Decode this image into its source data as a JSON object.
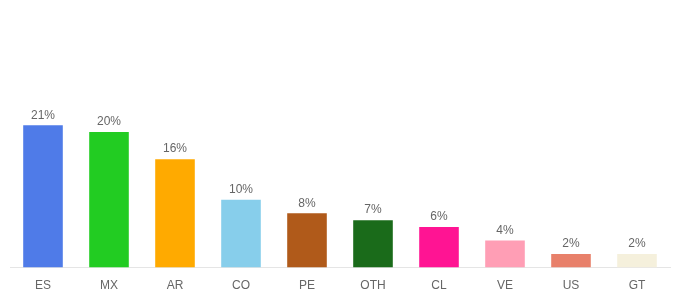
{
  "chart_data": {
    "type": "bar",
    "categories": [
      "ES",
      "MX",
      "AR",
      "CO",
      "PE",
      "OTH",
      "CL",
      "VE",
      "US",
      "GT"
    ],
    "values": [
      21,
      20,
      16,
      10,
      8,
      7,
      6,
      4,
      2,
      2
    ],
    "value_labels": [
      "21%",
      "20%",
      "16%",
      "10%",
      "8%",
      "7%",
      "6%",
      "4%",
      "2%",
      "2%"
    ],
    "colors": [
      "#4f7be8",
      "#22cc22",
      "#ffaa00",
      "#87ceeb",
      "#b05a1a",
      "#1a6b1a",
      "#ff1493",
      "#ff9eb5",
      "#e8806a",
      "#f5f0dc"
    ],
    "ylim": [
      0,
      38
    ],
    "grid": false,
    "data_labels": true,
    "tick_labels": "x"
  }
}
